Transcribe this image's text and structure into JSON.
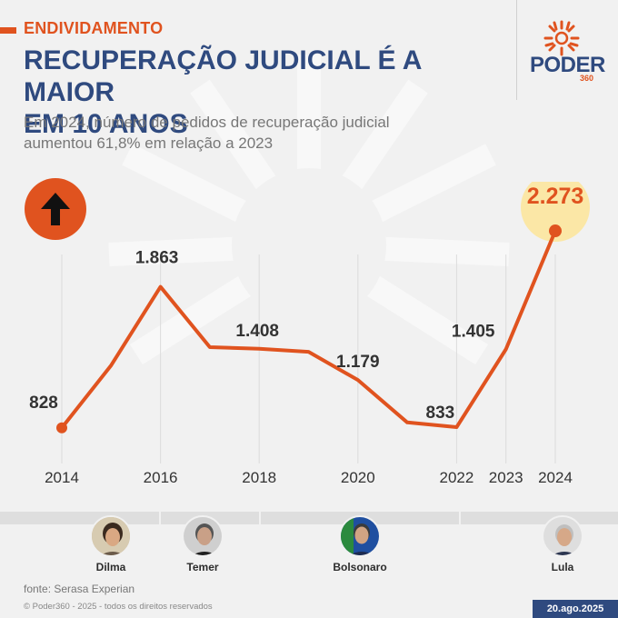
{
  "kicker": "ENDIVIDAMENTO",
  "headline": "RECUPERAÇÃO JUDICIAL É A MAIOR\nEM 10 ANOS",
  "subtitle": "Em 2024, número de pedidos de recuperação judicial\naumentou 61,8% em relação a 2023",
  "logo": {
    "name": "PODER",
    "sub": "360"
  },
  "colors": {
    "accent": "#e0531f",
    "brand": "#2f4a7f",
    "highlight": "#fbe7a6"
  },
  "trend_icon": "arrow-up-icon",
  "chart_data": {
    "type": "line",
    "x": [
      2014,
      2015,
      2016,
      2017,
      2018,
      2019,
      2020,
      2021,
      2022,
      2023,
      2024
    ],
    "values": [
      828,
      1287,
      1863,
      1420,
      1408,
      1386,
      1179,
      868,
      833,
      1405,
      2273
    ],
    "labels": [
      {
        "year": 2014,
        "text": "828"
      },
      {
        "year": 2016,
        "text": "1.863"
      },
      {
        "year": 2018,
        "text": "1.408"
      },
      {
        "year": 2020,
        "text": "1.179"
      },
      {
        "year": 2022,
        "text": "833"
      },
      {
        "year": 2023,
        "text": "1.405"
      },
      {
        "year": 2024,
        "text": "2.273"
      }
    ],
    "tick_years": [
      2014,
      2016,
      2018,
      2020,
      2022,
      2023,
      2024
    ],
    "tick_labels": [
      "2014",
      "2016",
      "2018",
      "2020",
      "2022",
      "2023",
      "2024"
    ],
    "highlight_year": 2024,
    "xlim": [
      2014,
      2024
    ],
    "ylim": [
      500,
      2500
    ],
    "line_color": "#e0531f"
  },
  "presidents": [
    {
      "name": "Dilma"
    },
    {
      "name": "Temer"
    },
    {
      "name": "Bolsonaro"
    },
    {
      "name": "Lula"
    }
  ],
  "source": "fonte: Serasa Experian",
  "copyright": "© Poder360 - 2025 - todos os direitos reservados",
  "date": "20.ago.2025"
}
